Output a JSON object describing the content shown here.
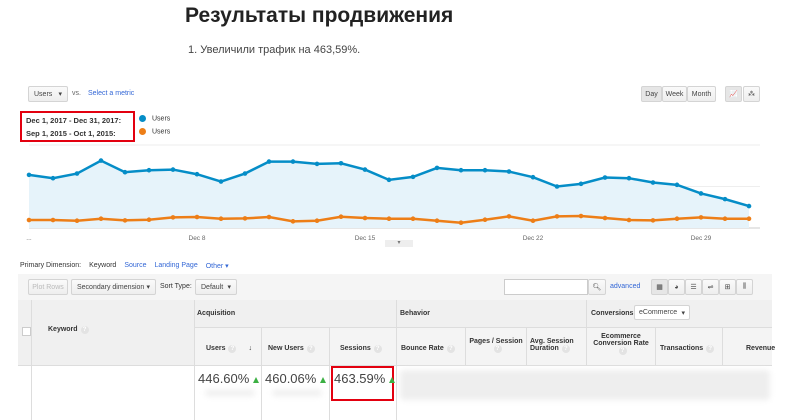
{
  "title": "Результаты продвижения",
  "subtitle": "1. Увеличили трафик на 463,59%.",
  "toolbar": {
    "metric": "Users",
    "vs": "vs.",
    "select_metric": "Select a metric",
    "day": "Day",
    "week": "Week",
    "month": "Month",
    "active_period": "Day"
  },
  "legend": [
    {
      "range": "Dec 1, 2017 - Dec 31, 2017:",
      "metric": "Users",
      "color": "#058dc7"
    },
    {
      "range": "Sep 1, 2015 - Oct 1, 2015:",
      "metric": "Users",
      "color": "#ed7e17"
    }
  ],
  "chart_data": {
    "type": "area",
    "x_ticks": [
      "...",
      "Dec 8",
      "Dec 15",
      "Dec 22",
      "Dec 29"
    ],
    "x": [
      1,
      2,
      3,
      4,
      5,
      6,
      7,
      8,
      9,
      10,
      11,
      12,
      13,
      14,
      15,
      16,
      17,
      18,
      19,
      20,
      21,
      22,
      23,
      24,
      25,
      26,
      27,
      28,
      29,
      30,
      31
    ],
    "ylim": [
      0,
      250
    ],
    "grid": true,
    "series": [
      {
        "name": "Users",
        "color": "#058dc7",
        "values": [
          160,
          150,
          164,
          203,
          168,
          174,
          176,
          162,
          140,
          164,
          200,
          200,
          193,
          195,
          176,
          145,
          154,
          181,
          174,
          174,
          170,
          153,
          125,
          133,
          152,
          150,
          137,
          130,
          104,
          87,
          66
        ]
      },
      {
        "name": "Users",
        "color": "#ed7e17",
        "values": [
          24,
          24,
          22,
          28,
          23,
          25,
          32,
          33,
          28,
          29,
          33,
          20,
          22,
          34,
          30,
          28,
          28,
          22,
          16,
          25,
          35,
          22,
          35,
          36,
          30,
          24,
          23,
          28,
          32,
          28,
          28
        ]
      }
    ]
  },
  "dimension": {
    "label": "Primary Dimension:",
    "active": "Keyword",
    "options": [
      "Source",
      "Landing Page",
      "Other"
    ]
  },
  "table_toolbar": {
    "plot_rows": "Plot Rows",
    "secondary": "Secondary dimension",
    "sort_label": "Sort Type:",
    "sort_value": "Default",
    "advanced": "advanced"
  },
  "table": {
    "keyword": "Keyword",
    "groups": {
      "acquisition": "Acquisition",
      "behavior": "Behavior",
      "conversions": "Conversions",
      "conv_select": "eCommerce"
    },
    "columns": [
      "Users",
      "New Users",
      "Sessions",
      "Bounce Rate",
      "Pages / Session",
      "Avg. Session Duration",
      "Ecommerce Conversion Rate",
      "Transactions",
      "Revenue"
    ],
    "values": [
      "446.60%",
      "460.06%",
      "463.59%"
    ]
  }
}
